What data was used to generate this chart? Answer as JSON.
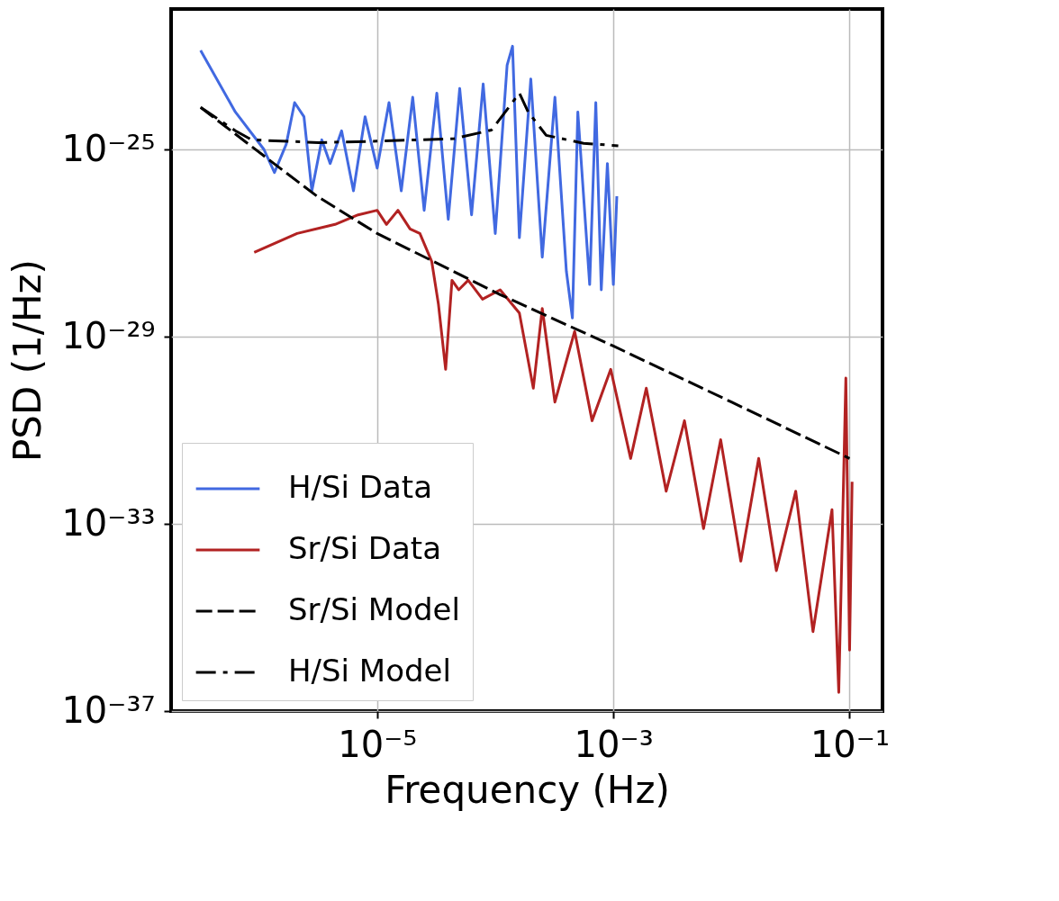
{
  "chart_data": {
    "type": "line",
    "xlabel": "Frequency (Hz)",
    "ylabel": "PSD (1/Hz)",
    "log": "xy",
    "grid": true,
    "legend": "bottom left",
    "xlim": [
      1.8e-07,
      0.19
    ],
    "ylim": [
      1e-37,
      1e-22
    ],
    "xticks": [
      {
        "value": 1e-05,
        "label": "10⁻⁵"
      },
      {
        "value": 0.001,
        "label": "10⁻³"
      },
      {
        "value": 0.1,
        "label": "10⁻¹"
      }
    ],
    "yticks": [
      {
        "value": 1e-37,
        "label": "10⁻³⁷"
      },
      {
        "value": 1e-33,
        "label": "10⁻³³"
      },
      {
        "value": 1e-29,
        "label": "10⁻²⁹"
      },
      {
        "value": 1e-25,
        "label": "10⁻²⁵"
      }
    ],
    "series": [
      {
        "name": "H/Si Data",
        "color": "#4169e1",
        "line_style": "solid",
        "x": [
          3.2e-07,
          6.3e-07,
          1.1e-06,
          1.35e-06,
          1.7e-06,
          2e-06,
          2.4e-06,
          2.8e-06,
          3.4e-06,
          4e-06,
          5e-06,
          6.3e-06,
          7.9e-06,
          1e-05,
          1.26e-05,
          1.6e-05,
          2e-05,
          2.5e-05,
          3.2e-05,
          4e-05,
          5e-05,
          6.3e-05,
          7.9e-05,
          0.0001,
          0.000126,
          0.00014,
          0.00016,
          0.0002,
          0.00025,
          0.00032,
          0.0004,
          0.00045,
          0.0005,
          0.00063,
          0.00071,
          0.00079,
          0.00089,
          0.001,
          0.00107
        ],
        "values": [
          1.3e-23,
          6.3e-25,
          1e-25,
          3.2e-26,
          1.3e-25,
          1e-24,
          5e-25,
          1.3e-26,
          1.6e-25,
          5e-26,
          2.5e-25,
          1.3e-26,
          5e-25,
          4e-26,
          1e-24,
          1.3e-26,
          1.3e-24,
          5e-27,
          1.6e-24,
          3.2e-27,
          2e-24,
          4e-27,
          2.5e-24,
          1.6e-27,
          6.3e-24,
          1.6e-23,
          1.3e-27,
          3.2e-24,
          5e-28,
          1.3e-24,
          2.5e-28,
          2.5e-29,
          6.3e-25,
          1.3e-28,
          1e-24,
          1e-28,
          5e-26,
          1.3e-28,
          1e-26
        ]
      },
      {
        "name": "Sr/Si Data",
        "color": "#b22222",
        "line_style": "solid",
        "x": [
          9.1e-07,
          2.1e-06,
          4.4e-06,
          6.9e-06,
          1e-05,
          1.2e-05,
          1.5e-05,
          1.9e-05,
          2.3e-05,
          2.9e-05,
          3.3e-05,
          3.8e-05,
          4.3e-05,
          4.9e-05,
          5.9e-05,
          7.8e-05,
          0.00011,
          0.00016,
          0.00021,
          0.00025,
          0.00032,
          0.00047,
          0.00066,
          0.00095,
          0.0014,
          0.0019,
          0.0028,
          0.004,
          0.0058,
          0.0081,
          0.012,
          0.017,
          0.024,
          0.035,
          0.049,
          0.071,
          0.081,
          0.093,
          0.1,
          0.105
        ],
        "values": [
          6.3e-28,
          1.6e-27,
          2.5e-27,
          4e-27,
          5e-27,
          2.5e-27,
          5e-27,
          2e-27,
          1.6e-27,
          4e-28,
          5e-29,
          2e-30,
          1.6e-28,
          1e-28,
          1.6e-28,
          6.3e-29,
          1e-28,
          3.2e-29,
          7.9e-31,
          4e-29,
          4e-31,
          1.3e-29,
          1.6e-31,
          2e-30,
          2.5e-32,
          7.9e-31,
          5e-33,
          1.6e-31,
          7.9e-34,
          6.3e-32,
          1.6e-34,
          2.5e-32,
          1e-34,
          5e-33,
          5e-36,
          2e-33,
          2.5e-37,
          1.3e-30,
          2e-36,
          7.9e-33
        ]
      },
      {
        "name": "Sr/Si Model",
        "color": "#000000",
        "line_style": "dashed",
        "x": [
          3.2e-07,
          5.1e-07,
          1.26e-06,
          3.1e-06,
          1e-05,
          0.00011,
          0.001,
          0.01,
          0.1
        ],
        "values": [
          7.9e-25,
          3.2e-25,
          5.6e-26,
          1e-26,
          1.6e-27,
          7.9e-29,
          6.3e-30,
          4e-31,
          2.5e-32
        ]
      },
      {
        "name": "H/Si Model",
        "color": "#000000",
        "line_style": "dashdot",
        "x": [
          3.2e-07,
          6.3e-07,
          8.7e-07,
          3.2e-06,
          1e-05,
          4.5e-05,
          9.3e-05,
          0.00013,
          0.00016,
          0.00019,
          0.00027,
          0.00056,
          0.0011
        ],
        "values": [
          7.9e-25,
          2.5e-25,
          1.6e-25,
          1.4e-25,
          1.5e-25,
          1.7e-25,
          2.6e-25,
          7.9e-25,
          1.6e-24,
          6.3e-25,
          2e-25,
          1.35e-25,
          1.2e-25
        ]
      }
    ]
  }
}
